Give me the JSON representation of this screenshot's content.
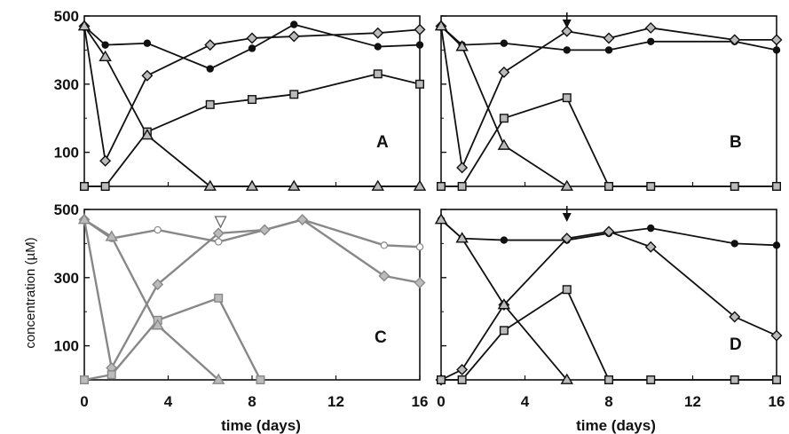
{
  "chart_data": [
    {
      "type": "line",
      "panel": "A",
      "xlim": [
        0,
        16
      ],
      "ylim": [
        0,
        500
      ],
      "yticks": [
        100,
        300,
        500
      ],
      "series": [
        {
          "marker": "circle",
          "x": [
            0,
            1,
            3,
            6,
            8,
            10,
            14,
            16
          ],
          "y": [
            470,
            415,
            420,
            345,
            405,
            475,
            410,
            415
          ]
        },
        {
          "marker": "diamond",
          "x": [
            0,
            1,
            3,
            6,
            8,
            10,
            14,
            16
          ],
          "y": [
            470,
            75,
            325,
            415,
            435,
            440,
            450,
            460
          ]
        },
        {
          "marker": "square",
          "x": [
            0,
            1,
            3,
            6,
            8,
            10,
            14,
            16
          ],
          "y": [
            0,
            0,
            160,
            240,
            255,
            270,
            330,
            300
          ]
        },
        {
          "marker": "triangle",
          "x": [
            0,
            1,
            3,
            6,
            8,
            10,
            14,
            16
          ],
          "y": [
            470,
            380,
            150,
            0,
            0,
            0,
            0,
            0
          ]
        }
      ]
    },
    {
      "type": "line",
      "panel": "B",
      "xlim": [
        0,
        16
      ],
      "ylim": [
        0,
        500
      ],
      "yticks": [
        100,
        300,
        500
      ],
      "arrow_x": 6,
      "series": [
        {
          "marker": "circle",
          "x": [
            0,
            1,
            3,
            6,
            8,
            10,
            14,
            16
          ],
          "y": [
            470,
            415,
            420,
            400,
            400,
            425,
            425,
            400
          ]
        },
        {
          "marker": "diamond",
          "x": [
            0,
            1,
            3,
            6,
            8,
            10,
            14,
            16
          ],
          "y": [
            470,
            55,
            335,
            455,
            435,
            465,
            430,
            430
          ]
        },
        {
          "marker": "square",
          "x": [
            0,
            1,
            3,
            6,
            8,
            10,
            14,
            16
          ],
          "y": [
            0,
            0,
            200,
            260,
            0,
            0,
            0,
            0
          ]
        },
        {
          "marker": "triangle",
          "x": [
            0,
            1,
            3,
            6
          ],
          "y": [
            470,
            410,
            120,
            0
          ]
        }
      ]
    },
    {
      "type": "line",
      "panel": "C",
      "xlim": [
        0,
        16
      ],
      "ylim": [
        0,
        500
      ],
      "yticks": [
        100,
        300,
        500
      ],
      "arrow_x": 6.5,
      "series": [
        {
          "marker": "circle",
          "x": [
            0,
            1.3,
            3.5,
            6.4,
            8.6,
            10.4,
            14.3,
            16
          ],
          "y": [
            470,
            415,
            440,
            405,
            440,
            470,
            395,
            390
          ]
        },
        {
          "marker": "diamond",
          "x": [
            0,
            1.3,
            3.5,
            6.4,
            8.6,
            10.4,
            14.3,
            16
          ],
          "y": [
            470,
            35,
            280,
            430,
            440,
            470,
            305,
            285
          ]
        },
        {
          "marker": "square",
          "x": [
            0,
            1.3,
            3.5,
            6.4,
            8.4
          ],
          "y": [
            0,
            15,
            175,
            240,
            0
          ]
        },
        {
          "marker": "triangle",
          "x": [
            0,
            1.3,
            3.5,
            6.4
          ],
          "y": [
            470,
            420,
            160,
            0
          ]
        }
      ]
    },
    {
      "type": "line",
      "panel": "D",
      "xlim": [
        0,
        16
      ],
      "ylim": [
        0,
        500
      ],
      "yticks": [
        100,
        300,
        500
      ],
      "arrow_x": 6,
      "series": [
        {
          "marker": "circle",
          "x": [
            0,
            1,
            3,
            6,
            8,
            10,
            14,
            16
          ],
          "y": [
            470,
            415,
            410,
            410,
            430,
            445,
            400,
            395
          ]
        },
        {
          "marker": "diamond",
          "x": [
            0,
            1,
            3,
            6,
            8,
            10,
            14,
            16
          ],
          "y": [
            0,
            30,
            220,
            415,
            435,
            390,
            185,
            130
          ]
        },
        {
          "marker": "square",
          "x": [
            0,
            1,
            3,
            6,
            8,
            10,
            14,
            16
          ],
          "y": [
            0,
            0,
            145,
            265,
            0,
            0,
            0,
            0
          ]
        },
        {
          "marker": "triangle",
          "x": [
            0,
            1,
            3,
            6
          ],
          "y": [
            470,
            415,
            220,
            0
          ]
        }
      ]
    }
  ],
  "xticks": [
    0,
    4,
    8,
    12,
    16
  ],
  "ylabel": "concentration (µM)",
  "xlabel": "time (days)",
  "colors": {
    "line": "#111111",
    "marker_fill": "#bbbbbb",
    "line_c": "#888888"
  }
}
